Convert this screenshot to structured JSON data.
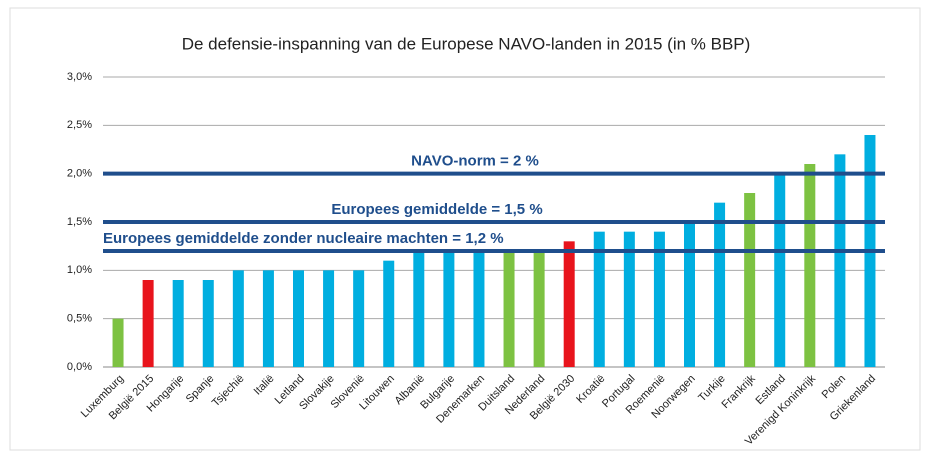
{
  "chart_data": {
    "type": "bar",
    "title": "De defensie-inspanning van de Europese NAVO-landen in 2015 (in % BBP)",
    "categories": [
      "Luxemburg",
      "België 2015",
      "Hongarije",
      "Spanje",
      "Tsjechië",
      "Italië",
      "Letland",
      "Slovakije",
      "Slovenië",
      "Litouwen",
      "Albanië",
      "Bulgarije",
      "Denemarken",
      "Duitsland",
      "Nederland",
      "België 2030",
      "Kroatië",
      "Portugal",
      "Roemenië",
      "Noorwegen",
      "Turkije",
      "Frankrijk",
      "Estland",
      "Verenigd Koninkrijk",
      "Polen",
      "Griekenland"
    ],
    "values": [
      0.5,
      0.9,
      0.9,
      0.9,
      1.0,
      1.0,
      1.0,
      1.0,
      1.0,
      1.1,
      1.2,
      1.2,
      1.2,
      1.2,
      1.2,
      1.3,
      1.4,
      1.4,
      1.4,
      1.5,
      1.7,
      1.8,
      2.0,
      2.1,
      2.2,
      2.4
    ],
    "colors": [
      "#7dc242",
      "#e8141c",
      "#00aee0",
      "#00aee0",
      "#00aee0",
      "#00aee0",
      "#00aee0",
      "#00aee0",
      "#00aee0",
      "#00aee0",
      "#00aee0",
      "#00aee0",
      "#00aee0",
      "#7dc242",
      "#7dc242",
      "#e8141c",
      "#00aee0",
      "#00aee0",
      "#00aee0",
      "#00aee0",
      "#00aee0",
      "#7dc242",
      "#00aee0",
      "#7dc242",
      "#00aee0",
      "#00aee0"
    ],
    "ylim": [
      0,
      3.0
    ],
    "yticks": [
      {
        "value": 0,
        "label": "0,0%"
      },
      {
        "value": 0.5,
        "label": "0,5%"
      },
      {
        "value": 1.0,
        "label": "1,0%"
      },
      {
        "value": 1.5,
        "label": "1,5%"
      },
      {
        "value": 2.0,
        "label": "2,0%"
      },
      {
        "value": 2.5,
        "label": "2,5%"
      },
      {
        "value": 3.0,
        "label": "3,0%"
      }
    ],
    "grid": true,
    "reference_lines": [
      {
        "value": 2,
        "label": "NAVO-norm = 2 %"
      },
      {
        "value": 1.5,
        "label": "Europees gemiddelde = 1,5 %"
      },
      {
        "value": 1.2,
        "label": "Europees gemiddelde zonder nucleaire machten = 1,2 %"
      }
    ],
    "reference_color": "#1f4e8c"
  }
}
